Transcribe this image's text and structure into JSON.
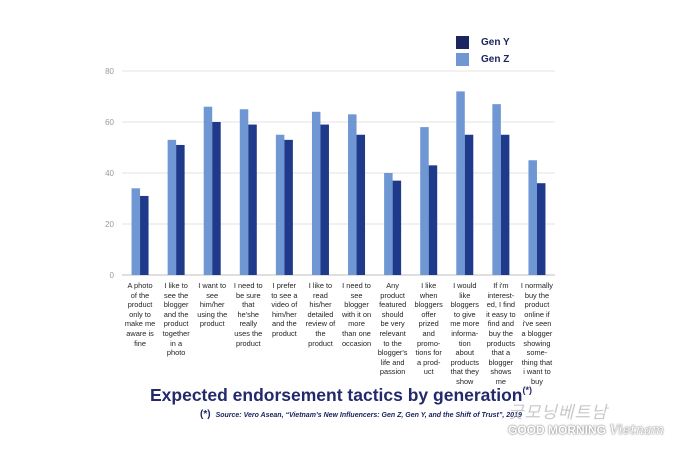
{
  "chart_data": {
    "type": "bar",
    "title": "Expected endorsement tactics by generation",
    "title_mark": "(*)",
    "source_mark": "(*)",
    "source": "Source: Vero Asean, “Vietnam’s New Influencers: Gen Z, Gen Y, and the Shift of Trust”, 2019",
    "ylim": [
      0,
      80
    ],
    "yticks": [
      0,
      20,
      40,
      60,
      80
    ],
    "grid": true,
    "legend_position": "top-right",
    "categories": [
      "A photo of the product only to make me aware is fine",
      "I like to see the blogger and the product together in a photo",
      "I want to see him/her using the product",
      "I need to be sure that he'she really uses the product",
      "I prefer to see a video of him/her and the product",
      "I like to read his/her detailed review of the product",
      "I need to see blogger with it on more than one occasion",
      "Any product featured should be very relevant to the blogger's life and passion",
      "I like when bloggers offer prized and promo-tions for a prod-uct",
      "I would like bloggers to give me more informa-tion about products that they show",
      "If i'm interest-ed, I find it easy to find and buy the products that a blogger shows me",
      "I normally buy the product online if i've seen a blogger showing some-thing that i want to buy"
    ],
    "category_lines": [
      "A photo\nof the\nproduct\nonly to\nmake me\naware is\nfine",
      "I like to\nsee the\nblogger\nand the\nproduct\ntogether\nin a\nphoto",
      "I want to\nsee\nhim/her\nusing the\nproduct",
      "I need to\nbe sure\nthat\nhe'she\nreally\nuses the\nproduct",
      "I prefer\nto see a\nvideo of\nhim/her\nand the\nproduct",
      "I like to\nread\nhis/her\ndetailed\nreview of\nthe\nproduct",
      "I need to\nsee\nblogger\nwith it on\nmore\nthan one\noccasion",
      "Any\nproduct\nfeatured\nshould\nbe very\nrelevant\nto the\nblogger's\nlife and\npassion",
      "I like\nwhen\nbloggers\noffer\nprized\nand\npromo-\ntions for\na prod-\nuct",
      "I would\nlike\nbloggers\nto give\nme more\ninforma-\ntion\nabout\nproducts\nthat they\nshow",
      "If i'm\ninterest-\ned, I find\nit easy to\nfind and\nbuy the\nproducts\nthat a\nblogger\nshows\nme",
      "I normally\nbuy the\nproduct\nonline if\ni've seen\na blogger\nshowing\nsome-\nthing that\ni want to\nbuy"
    ],
    "series": [
      {
        "name": "Gen Y",
        "color": "#1f3a8a",
        "values": [
          31,
          51,
          60,
          59,
          53,
          59,
          55,
          37,
          43,
          55,
          55,
          36
        ]
      },
      {
        "name": "Gen Z",
        "color": "#6f97d4",
        "values": [
          34,
          53,
          66,
          65,
          55,
          64,
          63,
          40,
          58,
          72,
          67,
          45
        ]
      }
    ]
  },
  "logo": {
    "hangul": "굿모닝베트남",
    "text_bold": "GOOD MORNING",
    "text_script": "Vietnam"
  }
}
